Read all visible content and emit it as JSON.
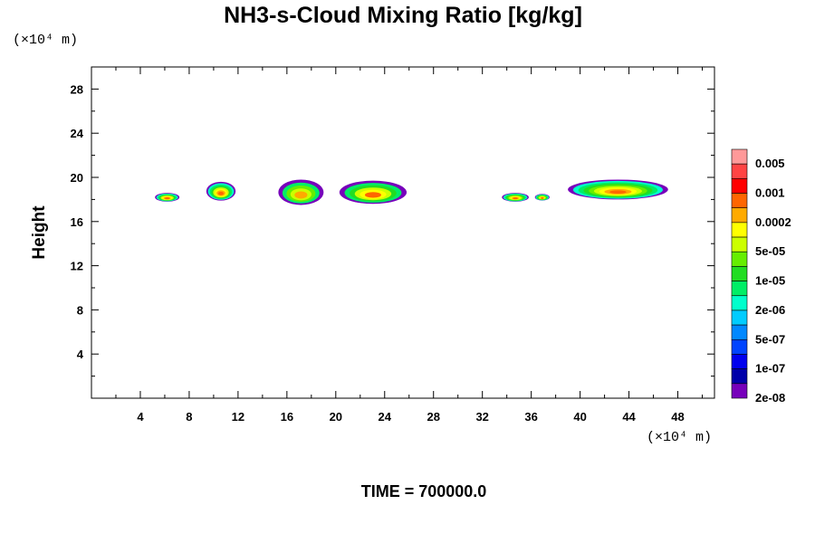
{
  "chart_data": {
    "type": "heatmap",
    "title": "NH3-s-Cloud Mixing Ratio [kg/kg]",
    "ylabel": "Height",
    "x_unit_label": "(×10⁴ m)",
    "y_unit_label": "(×10⁴ m)",
    "xlim": [
      0,
      51
    ],
    "ylim": [
      0,
      30
    ],
    "x_ticks": [
      "4",
      "8",
      "12",
      "16",
      "20",
      "24",
      "28",
      "32",
      "36",
      "40",
      "44",
      "48"
    ],
    "y_ticks": [
      "4",
      "8",
      "12",
      "16",
      "20",
      "24",
      "28"
    ],
    "time_label": "TIME = 700000.0",
    "colorbar": {
      "labels": [
        "0.005",
        "0.001",
        "0.0002",
        "5e-05",
        "1e-05",
        "2e-06",
        "5e-07",
        "1e-07",
        "2e-08"
      ],
      "colors": [
        "#ff9999",
        "#ff4444",
        "#ff0000",
        "#ff6600",
        "#ffaa00",
        "#ffff00",
        "#ccff00",
        "#66ee00",
        "#22dd22",
        "#00ee66",
        "#00ffcc",
        "#00ccff",
        "#0088ff",
        "#0044ff",
        "#0000ee",
        "#0000aa",
        "#7700bb"
      ]
    },
    "cloud_regions": [
      {
        "x": [
          5.2,
          7.2
        ],
        "y": [
          17.8,
          18.6
        ],
        "peak_level": 8
      },
      {
        "x": [
          9.4,
          11.8
        ],
        "y": [
          17.9,
          19.6
        ],
        "peak_level": 8
      },
      {
        "x": [
          15.3,
          19.0
        ],
        "y": [
          17.5,
          19.8
        ],
        "peak_level": 5
      },
      {
        "x": [
          20.3,
          25.8
        ],
        "y": [
          17.6,
          19.7
        ],
        "peak_level": 6
      },
      {
        "x": [
          33.6,
          35.8
        ],
        "y": [
          17.8,
          18.6
        ],
        "peak_level": 9
      },
      {
        "x": [
          36.3,
          37.5
        ],
        "y": [
          17.9,
          18.5
        ],
        "peak_level": 9
      },
      {
        "x": [
          39.0,
          47.2
        ],
        "y": [
          18.0,
          19.8
        ],
        "peak_level": 9
      }
    ]
  }
}
